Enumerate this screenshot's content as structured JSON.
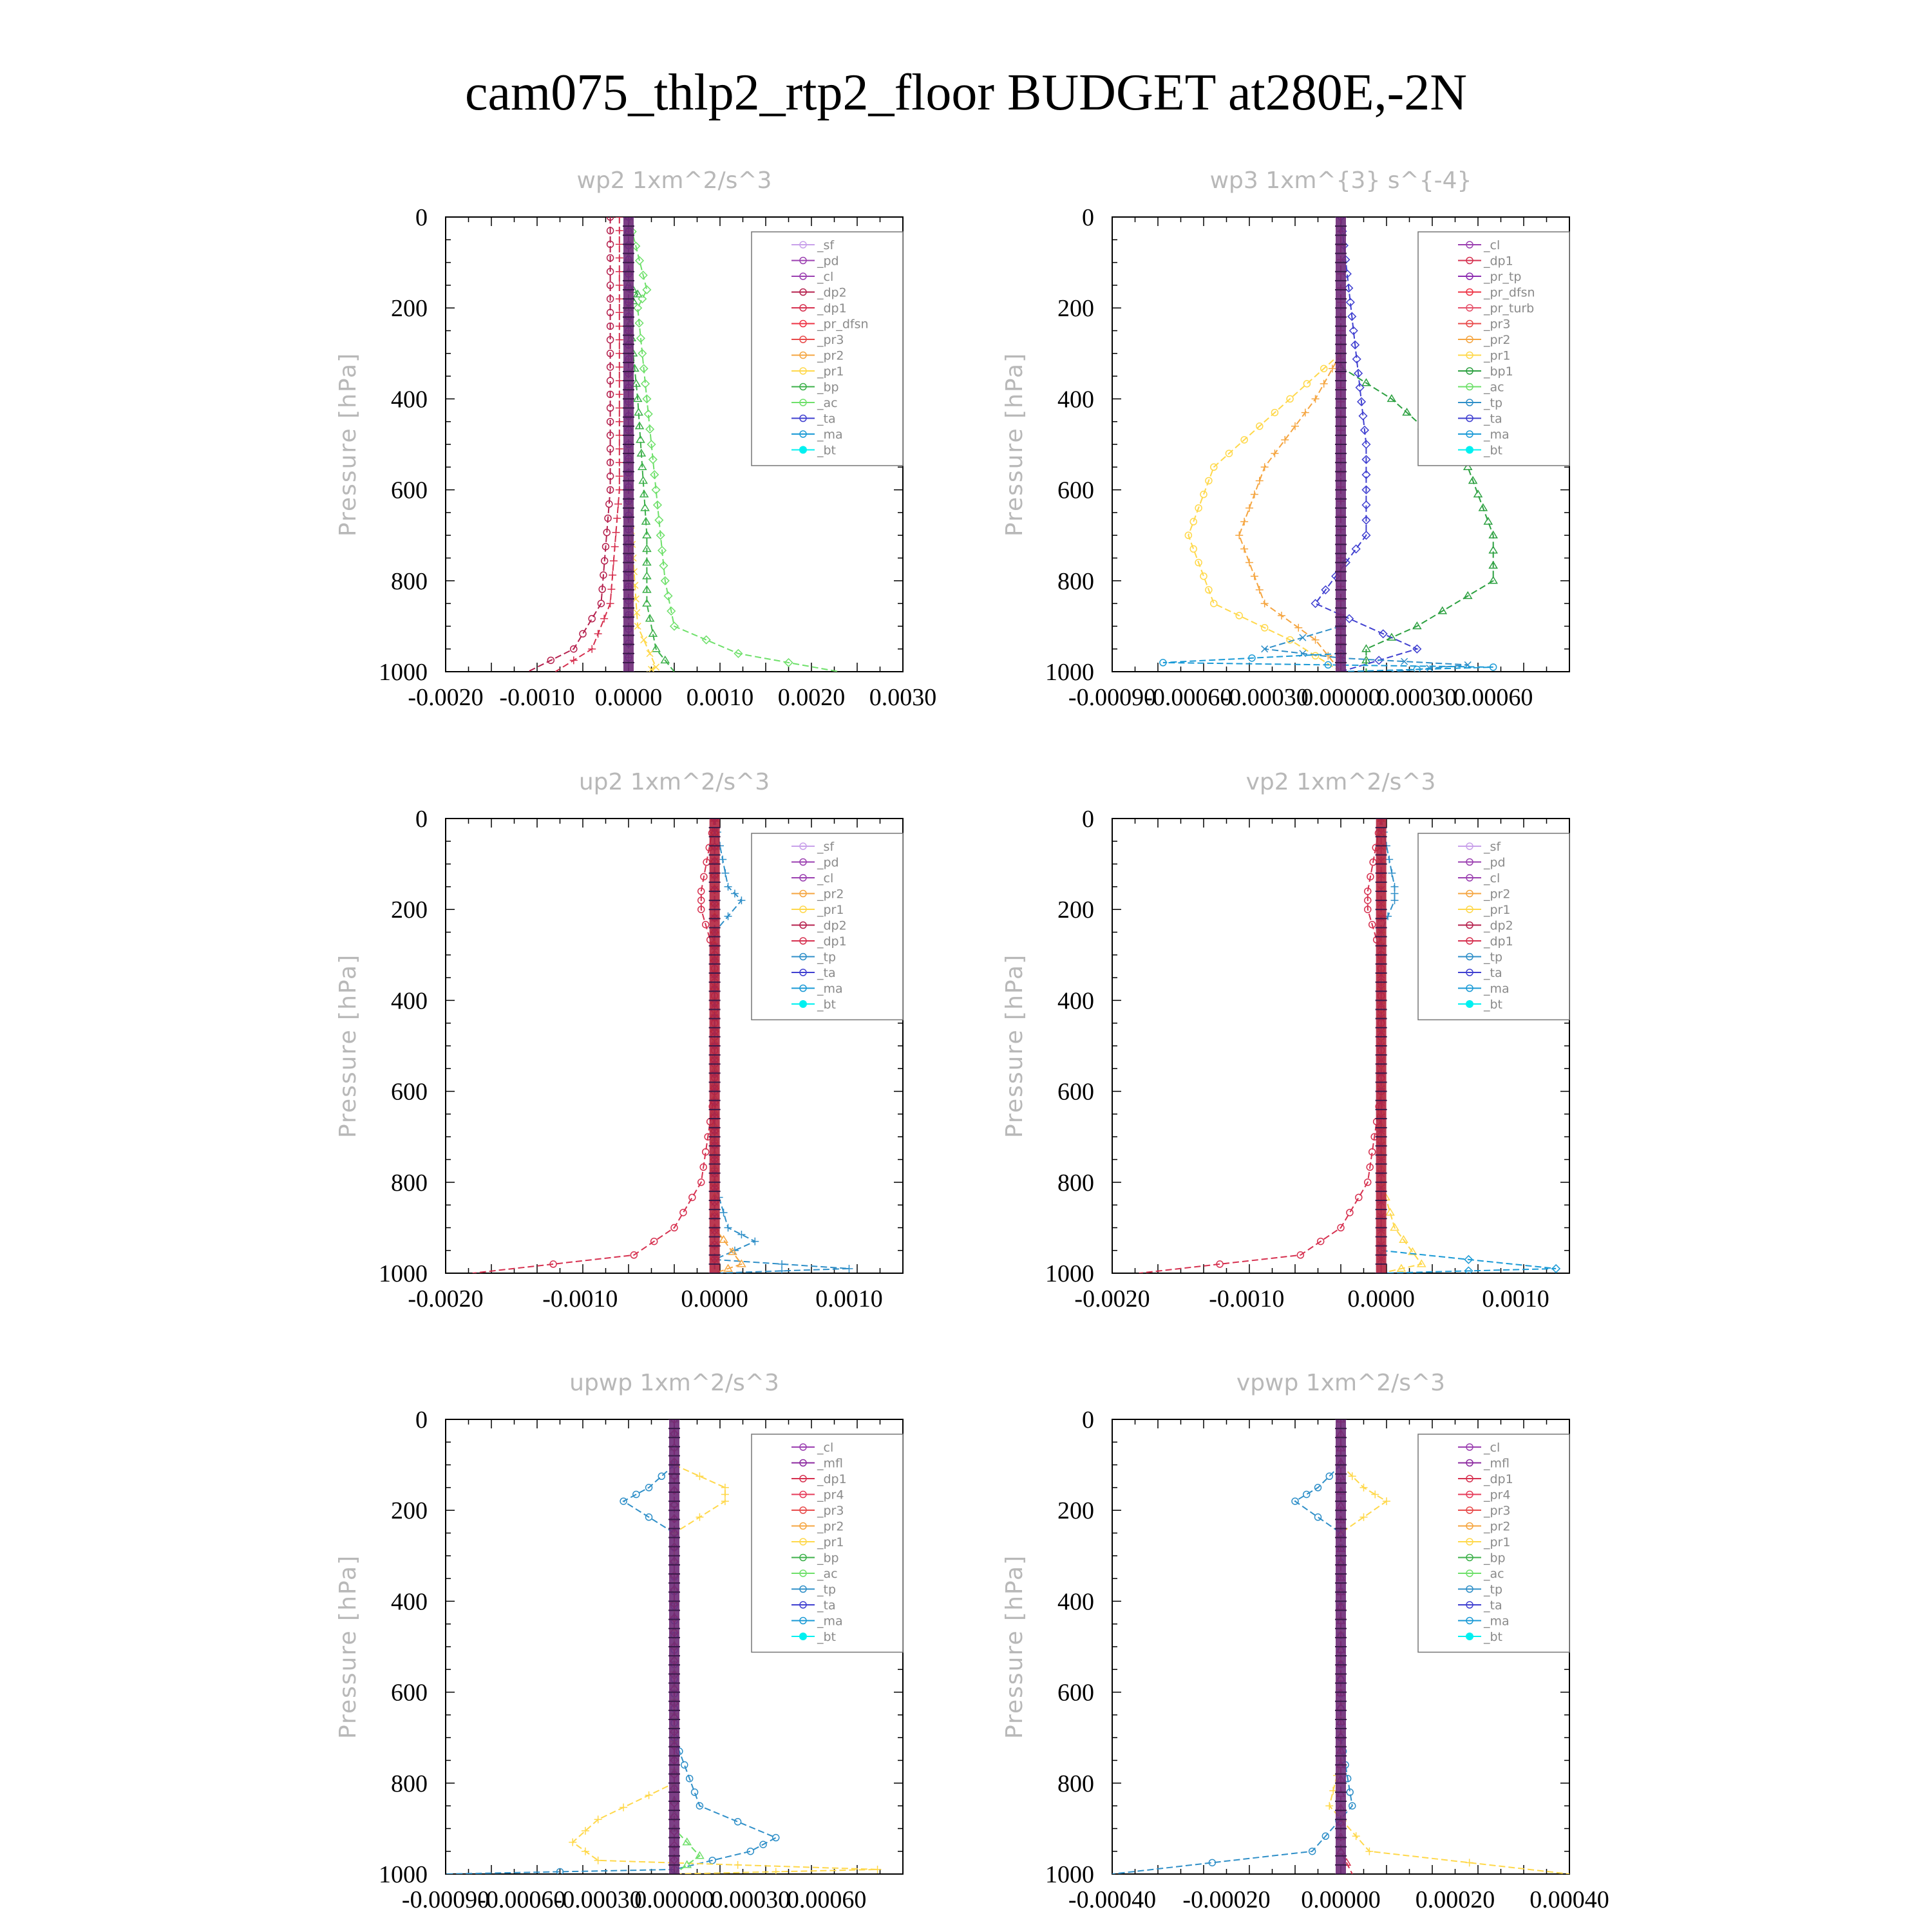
{
  "figure_title": "cam075_thlp2_rtp2_floor  BUDGET at280E,-2N",
  "colors": {
    "_sf": "#c8a0ea",
    "_pd": "#9b3fb0",
    "_cl": "#9b3fb0",
    "_dp2": "#b5204d",
    "_dp1": "#d6304f",
    "_pr_dfsn": "#ee3344",
    "_pr_tp": "#8b2bb0",
    "_pr_turb": "#e5506a",
    "_pr3": "#e84a4a",
    "_pr2": "#f5a540",
    "_pr1": "#ffd84a",
    "_pr4": "#e63b5a",
    "_bp": "#3cb04a",
    "_bp1": "#2ca040",
    "_ac": "#6ee06a",
    "_tp": "#2f8fc8",
    "_ta": "#3f3fd0",
    "_ma": "#1a9ad6",
    "_bt": "#00f0f0",
    "_mfl": "#8c2aa0"
  },
  "chart_data": [
    {
      "type": "line",
      "title": "wp2   1xm^2/s^3",
      "ylabel": "Pressure  [hPa]",
      "xlim": [
        -0.002,
        0.003
      ],
      "ylim": [
        1000,
        0
      ],
      "xticks": [
        "-0.0020",
        "-0.0010",
        "0.0000",
        "0.0010",
        "0.0020",
        "0.0030"
      ],
      "yticks": [
        "0",
        "200",
        "400",
        "600",
        "800",
        "1000"
      ],
      "legend": [
        "_sf",
        "_pd",
        "_cl",
        "_dp2",
        "_dp1",
        "_pr_dfsn",
        "_pr3",
        "_pr2",
        "_pr1",
        "_bp",
        "_ac",
        "_ta",
        "_ma",
        "_bt"
      ],
      "legend_position": "top-right",
      "series": [
        {
          "name": "_dp2",
          "points": [
            [
              -0.0002,
              0
            ],
            [
              -0.0002,
              300
            ],
            [
              -0.0002,
              600
            ],
            [
              -0.0003,
              850
            ],
            [
              -0.0006,
              950
            ],
            [
              -0.0011,
              1000
            ]
          ]
        },
        {
          "name": "_dp1",
          "points": [
            [
              -0.0001,
              0
            ],
            [
              -0.0001,
              300
            ],
            [
              -0.0001,
              600
            ],
            [
              -0.0002,
              850
            ],
            [
              -0.0004,
              950
            ],
            [
              -0.0008,
              1000
            ]
          ]
        },
        {
          "name": "_bp",
          "points": [
            [
              0.0,
              0
            ],
            [
              0.0,
              150
            ],
            [
              0.0001,
              170
            ],
            [
              0.0,
              200
            ],
            [
              0.0001,
              400
            ],
            [
              0.0002,
              700
            ],
            [
              0.0002,
              850
            ],
            [
              0.0003,
              950
            ],
            [
              0.0005,
              1000
            ]
          ]
        },
        {
          "name": "_ac",
          "points": [
            [
              0.0,
              0
            ],
            [
              0.0002,
              160
            ],
            [
              0.0001,
              200
            ],
            [
              0.0002,
              400
            ],
            [
              0.0003,
              600
            ],
            [
              0.0004,
              800
            ],
            [
              0.0005,
              900
            ],
            [
              0.0012,
              960
            ],
            [
              0.0023,
              1000
            ]
          ]
        },
        {
          "name": "_pr1",
          "points": [
            [
              0.0,
              0
            ],
            [
              0.0,
              600
            ],
            [
              0.0001,
              900
            ],
            [
              0.0003,
              990
            ],
            [
              0.0002,
              1000
            ]
          ]
        },
        {
          "name": "_ta",
          "points": [
            [
              0.0,
              0
            ],
            [
              0.0,
              1000
            ]
          ]
        },
        {
          "name": "_pd",
          "points": [
            [
              0.0,
              0
            ],
            [
              0.0,
              1000
            ]
          ]
        }
      ]
    },
    {
      "type": "line",
      "title": "wp3   1xm^{3} s^{-4}",
      "ylabel": "Pressure  [hPa]",
      "xlim": [
        -0.0009,
        0.0009
      ],
      "ylim": [
        1000,
        0
      ],
      "xticks": [
        "-0.00090",
        "-0.00060",
        "-0.00030",
        "0.00000",
        "0.00030",
        "0.00060"
      ],
      "yticks": [
        "0",
        "200",
        "400",
        "600",
        "800",
        "1000"
      ],
      "legend": [
        "_cl",
        "_dp1",
        "_pr_tp",
        "_pr_dfsn",
        "_pr_turb",
        "_pr3",
        "_pr2",
        "_pr1",
        "_bp1",
        "_ac",
        "_tp",
        "_ta",
        "_ma",
        "_bt"
      ],
      "legend_position": "top-right",
      "series": [
        {
          "name": "_pr1",
          "points": [
            [
              0.0,
              300
            ],
            [
              -0.0002,
              400
            ],
            [
              -0.0005,
              550
            ],
            [
              -0.0006,
              700
            ],
            [
              -0.0005,
              850
            ],
            [
              -0.0002,
              930
            ],
            [
              0.0,
              1000
            ]
          ]
        },
        {
          "name": "_pr2",
          "points": [
            [
              0.0,
              300
            ],
            [
              -0.0001,
              400
            ],
            [
              -0.0003,
              550
            ],
            [
              -0.0004,
              700
            ],
            [
              -0.0003,
              850
            ],
            [
              -0.0001,
              930
            ],
            [
              0.0,
              1000
            ]
          ]
        },
        {
          "name": "_bp1",
          "points": [
            [
              0.0,
              330
            ],
            [
              0.0002,
              400
            ],
            [
              0.0005,
              550
            ],
            [
              0.0006,
              700
            ],
            [
              0.0006,
              800
            ],
            [
              0.0003,
              900
            ],
            [
              0.0001,
              950
            ],
            [
              0.0001,
              1000
            ]
          ]
        },
        {
          "name": "_ta",
          "points": [
            [
              0.0,
              0
            ],
            [
              0.0001,
              500
            ],
            [
              0.0001,
              700
            ],
            [
              -0.0001,
              850
            ],
            [
              0.0003,
              950
            ],
            [
              0.0,
              1000
            ]
          ]
        },
        {
          "name": "_tp",
          "points": [
            [
              0.0,
              900
            ],
            [
              -0.0003,
              950
            ],
            [
              0.0,
              970
            ],
            [
              0.0005,
              985
            ],
            [
              0.0002,
              1000
            ]
          ]
        },
        {
          "name": "_ma",
          "points": [
            [
              0.0,
              960
            ],
            [
              -0.0007,
              980
            ],
            [
              0.0006,
              990
            ],
            [
              0.0,
              1000
            ]
          ]
        },
        {
          "name": "_dp1",
          "points": [
            [
              0.0,
              0
            ],
            [
              0.0,
              1000
            ]
          ]
        }
      ]
    },
    {
      "type": "line",
      "title": "up2   1xm^2/s^3",
      "ylabel": "Pressure  [hPa]",
      "xlim": [
        -0.002,
        0.0014
      ],
      "ylim": [
        1000,
        0
      ],
      "xticks": [
        "-0.0020",
        "-0.0010",
        "0.0000",
        "0.0010"
      ],
      "yticks": [
        "0",
        "200",
        "400",
        "600",
        "800",
        "1000"
      ],
      "legend": [
        "_sf",
        "_pd",
        "_cl",
        "_pr2",
        "_pr1",
        "_dp2",
        "_dp1",
        "_tp",
        "_ta",
        "_ma",
        "_bt"
      ],
      "legend_position": "top-right",
      "series": [
        {
          "name": "_dp1",
          "points": [
            [
              0.0,
              0
            ],
            [
              -0.0001,
              160
            ],
            [
              -0.0001,
              200
            ],
            [
              0.0,
              300
            ],
            [
              0.0,
              600
            ],
            [
              -0.0001,
              800
            ],
            [
              -0.0003,
              900
            ],
            [
              -0.0006,
              960
            ],
            [
              -0.0018,
              1000
            ]
          ]
        },
        {
          "name": "_tp",
          "points": [
            [
              0.0,
              0
            ],
            [
              0.0001,
              150
            ],
            [
              0.0002,
              180
            ],
            [
              0.0,
              250
            ],
            [
              0.0,
              800
            ],
            [
              0.0001,
              900
            ],
            [
              0.0003,
              930
            ],
            [
              0.0,
              970
            ],
            [
              0.001,
              990
            ],
            [
              0.0,
              1000
            ]
          ]
        },
        {
          "name": "_pr2",
          "points": [
            [
              0.0,
              0
            ],
            [
              0.0,
              800
            ],
            [
              0.0,
              900
            ],
            [
              0.0002,
              980
            ],
            [
              0.0,
              1000
            ]
          ]
        },
        {
          "name": "_dp2",
          "points": [
            [
              0.0,
              0
            ],
            [
              0.0,
              1000
            ]
          ]
        },
        {
          "name": "_ta",
          "points": [
            [
              0.0,
              0
            ],
            [
              0.0,
              1000
            ]
          ]
        }
      ]
    },
    {
      "type": "line",
      "title": "vp2   1xm^2/s^3",
      "ylabel": "Pressure  [hPa]",
      "xlim": [
        -0.002,
        0.0014
      ],
      "ylim": [
        1000,
        0
      ],
      "xticks": [
        "-0.0020",
        "-0.0010",
        "0.0000",
        "0.0010"
      ],
      "yticks": [
        "0",
        "200",
        "400",
        "600",
        "800",
        "1000"
      ],
      "legend": [
        "_sf",
        "_pd",
        "_cl",
        "_pr2",
        "_pr1",
        "_dp2",
        "_dp1",
        "_tp",
        "_ta",
        "_ma",
        "_bt"
      ],
      "legend_position": "top-right",
      "series": [
        {
          "name": "_dp1",
          "points": [
            [
              0.0,
              0
            ],
            [
              -0.0001,
              160
            ],
            [
              -0.0001,
              200
            ],
            [
              0.0,
              300
            ],
            [
              0.0,
              600
            ],
            [
              -0.0001,
              800
            ],
            [
              -0.0003,
              900
            ],
            [
              -0.0006,
              960
            ],
            [
              -0.0018,
              1000
            ]
          ]
        },
        {
          "name": "_tp",
          "points": [
            [
              0.0,
              0
            ],
            [
              0.0001,
              150
            ],
            [
              0.0001,
              180
            ],
            [
              0.0,
              250
            ],
            [
              0.0,
              1000
            ]
          ]
        },
        {
          "name": "_pr1",
          "points": [
            [
              0.0,
              0
            ],
            [
              0.0,
              800
            ],
            [
              0.0001,
              900
            ],
            [
              0.0003,
              980
            ],
            [
              0.0,
              1000
            ]
          ]
        },
        {
          "name": "_ma",
          "points": [
            [
              0.0,
              950
            ],
            [
              0.0013,
              990
            ],
            [
              0.0,
              1000
            ]
          ]
        },
        {
          "name": "_pd",
          "points": [
            [
              0.0,
              0
            ],
            [
              0.0,
              1000
            ]
          ]
        }
      ]
    },
    {
      "type": "line",
      "title": "upwp   1xm^2/s^3",
      "ylabel": "Pressure  [hPa]",
      "xlim": [
        -0.0009,
        0.0009
      ],
      "ylim": [
        1000,
        0
      ],
      "xticks": [
        "-0.00090",
        "-0.00060",
        "-0.00030",
        "0.00000",
        "0.00030",
        "0.00060"
      ],
      "yticks": [
        "0",
        "200",
        "400",
        "600",
        "800",
        "1000"
      ],
      "legend": [
        "_cl",
        "_mfl",
        "_dp1",
        "_pr4",
        "_pr3",
        "_pr2",
        "_pr1",
        "_bp",
        "_ac",
        "_tp",
        "_ta",
        "_ma",
        "_bt"
      ],
      "legend_position": "top-right",
      "series": [
        {
          "name": "_tp",
          "points": [
            [
              0.0,
              100
            ],
            [
              -0.0001,
              150
            ],
            [
              -0.0002,
              180
            ],
            [
              0.0,
              250
            ],
            [
              0.0,
              700
            ],
            [
              0.0001,
              850
            ],
            [
              0.0004,
              920
            ],
            [
              0.0003,
              950
            ],
            [
              0.0,
              990
            ],
            [
              -0.0009,
              1000
            ]
          ]
        },
        {
          "name": "_pr1",
          "points": [
            [
              0.0,
              100
            ],
            [
              0.0002,
              150
            ],
            [
              0.0002,
              180
            ],
            [
              0.0,
              250
            ],
            [
              0.0,
              800
            ],
            [
              -0.0003,
              880
            ],
            [
              -0.0004,
              930
            ],
            [
              -0.0003,
              970
            ],
            [
              0.0008,
              990
            ],
            [
              0.0,
              1000
            ]
          ]
        },
        {
          "name": "_ac",
          "points": [
            [
              0.0,
              0
            ],
            [
              0.0,
              900
            ],
            [
              0.0001,
              960
            ],
            [
              0.0,
              1000
            ]
          ]
        },
        {
          "name": "_dp1",
          "points": [
            [
              0.0,
              0
            ],
            [
              0.0,
              1000
            ]
          ]
        }
      ]
    },
    {
      "type": "line",
      "title": "vpwp   1xm^2/s^3",
      "ylabel": "Pressure  [hPa]",
      "xlim": [
        -0.0004,
        0.0004
      ],
      "ylim": [
        1000,
        0
      ],
      "xticks": [
        "-0.00040",
        "-0.00020",
        "0.00000",
        "0.00020",
        "0.00040"
      ],
      "yticks": [
        "0",
        "200",
        "400",
        "600",
        "800",
        "1000"
      ],
      "legend": [
        "_cl",
        "_mfl",
        "_dp1",
        "_pr4",
        "_pr3",
        "_pr2",
        "_pr1",
        "_bp",
        "_ac",
        "_tp",
        "_ta",
        "_ma",
        "_bt"
      ],
      "legend_position": "top-right",
      "series": [
        {
          "name": "_tp",
          "points": [
            [
              0.0,
              100
            ],
            [
              -4e-05,
              150
            ],
            [
              -8e-05,
              180
            ],
            [
              0.0,
              250
            ],
            [
              0.0,
              700
            ],
            [
              2e-05,
              850
            ],
            [
              -5e-05,
              950
            ],
            [
              -0.0004,
              1000
            ]
          ]
        },
        {
          "name": "_pr1",
          "points": [
            [
              0.0,
              100
            ],
            [
              4e-05,
              150
            ],
            [
              8e-05,
              180
            ],
            [
              0.0,
              250
            ],
            [
              0.0,
              750
            ],
            [
              -2e-05,
              850
            ],
            [
              5e-05,
              950
            ],
            [
              0.0004,
              1000
            ]
          ]
        },
        {
          "name": "_dp1",
          "points": [
            [
              0.0,
              0
            ],
            [
              0.0,
              950
            ],
            [
              2e-05,
              1000
            ]
          ]
        }
      ]
    }
  ]
}
